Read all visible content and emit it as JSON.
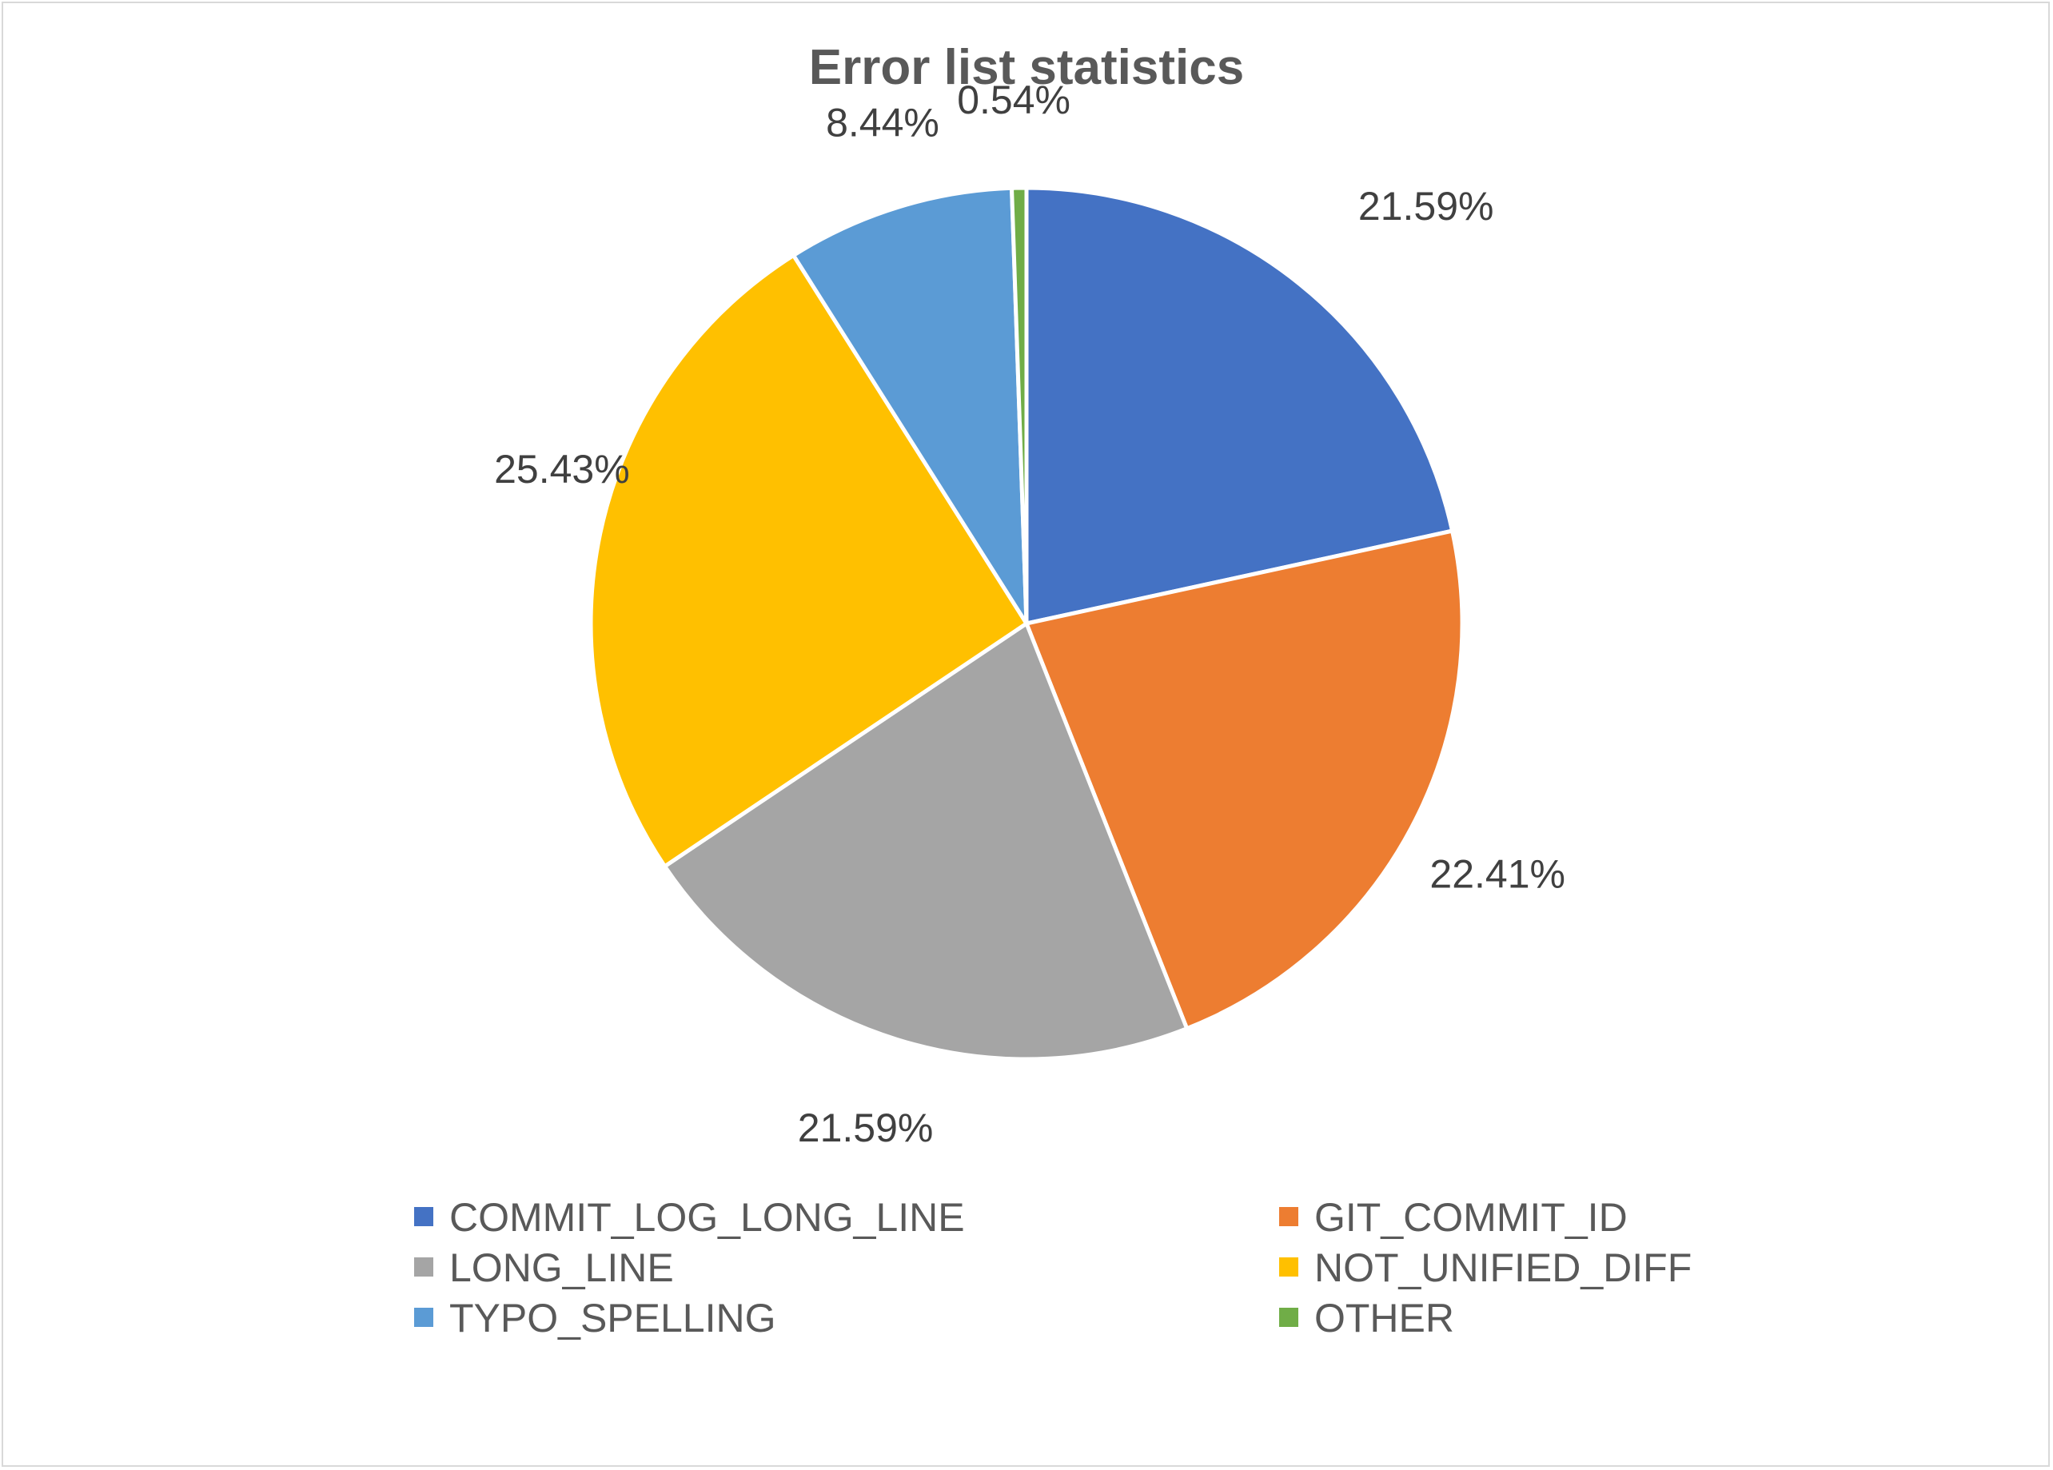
{
  "chart_data": {
    "type": "pie",
    "title": "Error list statistics",
    "categories": [
      "COMMIT_LOG_LONG_LINE",
      "GIT_COMMIT_ID",
      "LONG_LINE",
      "NOT_UNIFIED_DIFF",
      "TYPO_SPELLING",
      "OTHER"
    ],
    "values": [
      21.59,
      22.41,
      21.59,
      25.43,
      8.44,
      0.54
    ],
    "labels": [
      "21.59%",
      "22.41%",
      "21.59%",
      "25.43%",
      "8.44%",
      "0.54%"
    ],
    "colors": [
      "#4472C4",
      "#ED7D31",
      "#A5A5A5",
      "#FFC000",
      "#5B9BD5",
      "#70AD47"
    ],
    "start_angle_deg": 0,
    "direction": "clockwise",
    "legend_position": "bottom",
    "legend_columns": 2
  }
}
